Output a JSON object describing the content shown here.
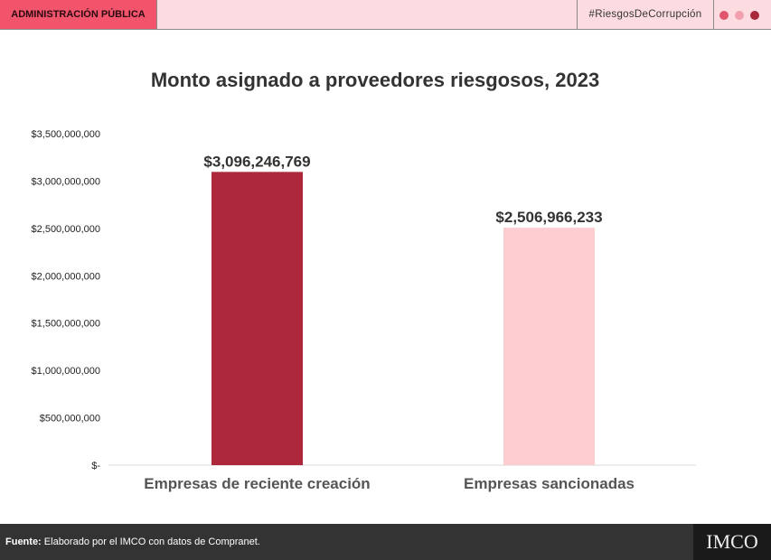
{
  "header": {
    "section": "ADMINISTRACIÓN PÚBLICA",
    "hashtag": "#RiesgosDeCorrupción",
    "dot_colors": [
      "#e0556b",
      "#f2a0ad",
      "#a8283c"
    ]
  },
  "chart_data": {
    "type": "bar",
    "title": "Monto asignado a proveedores riesgosos, 2023",
    "categories": [
      "Empresas de reciente creación",
      "Empresas sancionadas"
    ],
    "values": [
      3096246769,
      2506966233
    ],
    "data_labels": [
      "$3,096,246,769",
      "$2,506,966,233"
    ],
    "colors": [
      "#ae283c",
      "#fecdd2"
    ],
    "ylim": [
      0,
      3500000000
    ],
    "yticks": [
      0,
      500000000,
      1000000000,
      1500000000,
      2000000000,
      2500000000,
      3000000000,
      3500000000
    ],
    "ytick_labels": [
      "$-",
      "$500,000,000",
      "$1,000,000,000",
      "$1,500,000,000",
      "$2,000,000,000",
      "$2,500,000,000",
      "$3,000,000,000",
      "$3,500,000,000"
    ],
    "xlabel": "",
    "ylabel": "",
    "grid": false
  },
  "footer": {
    "source_label": "Fuente:",
    "source_text": " Elaborado por el IMCO con datos de Compranet.",
    "logo": "IMCO"
  }
}
